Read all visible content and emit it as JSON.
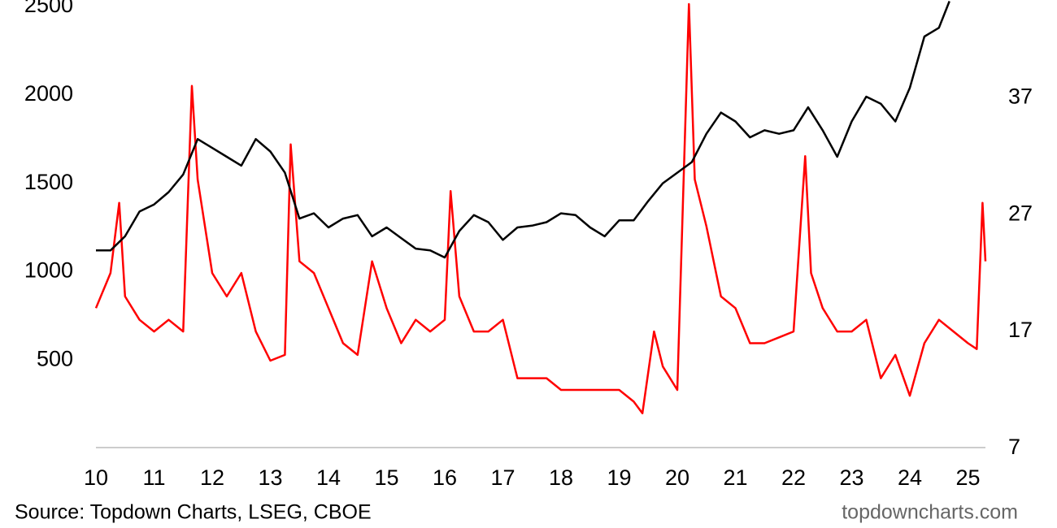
{
  "chart_data": {
    "type": "line",
    "xlim": [
      2010,
      2025.3
    ],
    "xticks": [
      {
        "value": 2010,
        "label": "10"
      },
      {
        "value": 2011,
        "label": "11"
      },
      {
        "value": 2012,
        "label": "12"
      },
      {
        "value": 2013,
        "label": "13"
      },
      {
        "value": 2014,
        "label": "14"
      },
      {
        "value": 2015,
        "label": "15"
      },
      {
        "value": 2016,
        "label": "16"
      },
      {
        "value": 2017,
        "label": "17"
      },
      {
        "value": 2018,
        "label": "18"
      },
      {
        "value": 2019,
        "label": "19"
      },
      {
        "value": 2020,
        "label": "20"
      },
      {
        "value": 2021,
        "label": "21"
      },
      {
        "value": 2022,
        "label": "22"
      },
      {
        "value": 2023,
        "label": "23"
      },
      {
        "value": 2024,
        "label": "24"
      },
      {
        "value": 2025,
        "label": "25"
      }
    ],
    "ylim": [
      0,
      2537
    ],
    "yticks": [
      500,
      1000,
      1500,
      2000,
      2500
    ],
    "y2lim": [
      7,
      45.35
    ],
    "y2ticks": [
      7,
      17,
      27,
      37
    ],
    "series": [
      {
        "color": "#000000",
        "x": [
          2010,
          2010.25,
          2010.5,
          2010.75,
          2011,
          2011.25,
          2011.5,
          2011.75,
          2012,
          2012.25,
          2012.5,
          2012.75,
          2013,
          2013.25,
          2013.5,
          2013.75,
          2014,
          2014.25,
          2014.5,
          2014.75,
          2015,
          2015.25,
          2015.5,
          2015.75,
          2016,
          2016.25,
          2016.5,
          2016.75,
          2017,
          2017.25,
          2017.5,
          2017.75,
          2018,
          2018.25,
          2018.5,
          2018.75,
          2019,
          2019.25,
          2019.5,
          2019.75,
          2020,
          2020.25,
          2020.5,
          2020.75,
          2021,
          2021.25,
          2021.5,
          2021.75,
          2022,
          2022.25,
          2022.5,
          2022.75,
          2023,
          2023.25,
          2023.5,
          2023.75,
          2024,
          2024.25,
          2024.5,
          2024.68
        ],
        "values": [
          1120,
          1120,
          1200,
          1340,
          1380,
          1450,
          1550,
          1750,
          1700,
          1650,
          1600,
          1750,
          1680,
          1560,
          1300,
          1330,
          1250,
          1300,
          1320,
          1200,
          1250,
          1190,
          1130,
          1120,
          1080,
          1230,
          1320,
          1280,
          1180,
          1250,
          1260,
          1280,
          1330,
          1320,
          1250,
          1200,
          1290,
          1290,
          1400,
          1500,
          1560,
          1620,
          1780,
          1900,
          1850,
          1760,
          1800,
          1780,
          1800,
          1930,
          1800,
          1650,
          1850,
          1990,
          1950,
          1850,
          2040,
          2330,
          2380,
          2530
        ]
      },
      {
        "color": "#ff0000",
        "axis": "y2",
        "x": [
          2010,
          2010.25,
          2010.4,
          2010.5,
          2010.75,
          2011,
          2011.25,
          2011.5,
          2011.65,
          2011.75,
          2012,
          2012.25,
          2012.5,
          2012.75,
          2013,
          2013.25,
          2013.35,
          2013.5,
          2013.75,
          2014,
          2014.25,
          2014.5,
          2014.75,
          2015,
          2015.25,
          2015.5,
          2015.75,
          2016,
          2016.1,
          2016.25,
          2016.5,
          2016.75,
          2017,
          2017.25,
          2017.5,
          2017.75,
          2018,
          2018.25,
          2018.5,
          2018.75,
          2019,
          2019.25,
          2019.4,
          2019.6,
          2019.75,
          2020,
          2020.2,
          2020.3,
          2020.5,
          2020.75,
          2021,
          2021.25,
          2021.5,
          2021.75,
          2022,
          2022.2,
          2022.3,
          2022.5,
          2022.75,
          2023,
          2023.25,
          2023.5,
          2023.75,
          2024,
          2024.25,
          2024.5,
          2024.75,
          2025,
          2025.15,
          2025.25,
          2025.3
        ],
        "values": [
          19,
          22,
          28,
          20,
          18,
          17,
          18,
          17,
          38,
          30,
          22,
          20,
          22,
          17,
          14.5,
          15,
          33,
          23,
          22,
          19,
          16,
          15,
          23,
          19,
          16,
          18,
          17,
          18,
          29,
          20,
          17,
          17,
          18,
          13,
          13,
          13,
          12,
          12,
          12,
          12,
          12,
          11,
          10,
          17,
          14,
          12,
          45,
          30,
          26,
          20,
          19,
          16,
          16,
          16.5,
          17,
          32,
          22,
          19,
          17,
          17,
          18,
          13,
          15,
          11.5,
          16,
          18,
          17,
          16,
          15.5,
          28,
          23
        ]
      }
    ],
    "source": "Source: Topdown Charts, LSEG, CBOE",
    "watermark": "topdowncharts.com"
  }
}
